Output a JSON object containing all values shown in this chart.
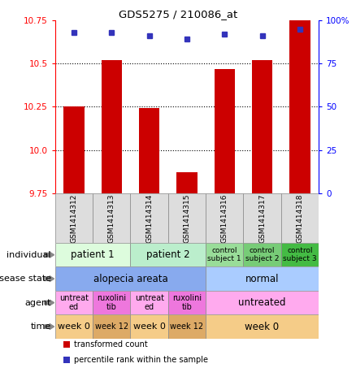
{
  "title": "GDS5275 / 210086_at",
  "samples": [
    "GSM1414312",
    "GSM1414313",
    "GSM1414314",
    "GSM1414315",
    "GSM1414316",
    "GSM1414317",
    "GSM1414318"
  ],
  "transformed_count": [
    10.25,
    10.52,
    10.24,
    9.87,
    10.47,
    10.52,
    10.75
  ],
  "percentile_rank": [
    93,
    93,
    91,
    89,
    92,
    91,
    95
  ],
  "ylim_left": [
    9.75,
    10.75
  ],
  "ylim_right": [
    0,
    100
  ],
  "yticks_left": [
    9.75,
    10.0,
    10.25,
    10.5,
    10.75
  ],
  "yticks_right": [
    0,
    25,
    50,
    75,
    100
  ],
  "ytick_labels_right": [
    "0",
    "25",
    "50",
    "75",
    "100%"
  ],
  "bar_color": "#cc0000",
  "dot_color": "#3333bb",
  "annotation_rows": [
    {
      "label": "individual",
      "groups": [
        {
          "text": "patient 1",
          "span": [
            0,
            2
          ],
          "color": "#ddfcdd",
          "fontsize": 8.5
        },
        {
          "text": "patient 2",
          "span": [
            2,
            4
          ],
          "color": "#bbeecc",
          "fontsize": 8.5
        },
        {
          "text": "control\nsubject 1",
          "span": [
            4,
            5
          ],
          "color": "#99dd99",
          "fontsize": 6.5
        },
        {
          "text": "control\nsubject 2",
          "span": [
            5,
            6
          ],
          "color": "#77cc77",
          "fontsize": 6.5
        },
        {
          "text": "control\nsubject 3",
          "span": [
            6,
            7
          ],
          "color": "#44bb44",
          "fontsize": 6.5
        }
      ]
    },
    {
      "label": "disease state",
      "groups": [
        {
          "text": "alopecia areata",
          "span": [
            0,
            4
          ],
          "color": "#88aaee",
          "fontsize": 8.5
        },
        {
          "text": "normal",
          "span": [
            4,
            7
          ],
          "color": "#aaccff",
          "fontsize": 8.5
        }
      ]
    },
    {
      "label": "agent",
      "groups": [
        {
          "text": "untreat\ned",
          "span": [
            0,
            1
          ],
          "color": "#ffaaee",
          "fontsize": 7
        },
        {
          "text": "ruxolini\ntib",
          "span": [
            1,
            2
          ],
          "color": "#ee77dd",
          "fontsize": 7
        },
        {
          "text": "untreat\ned",
          "span": [
            2,
            3
          ],
          "color": "#ffaaee",
          "fontsize": 7
        },
        {
          "text": "ruxolini\ntib",
          "span": [
            3,
            4
          ],
          "color": "#ee77dd",
          "fontsize": 7
        },
        {
          "text": "untreated",
          "span": [
            4,
            7
          ],
          "color": "#ffaaee",
          "fontsize": 8.5
        }
      ]
    },
    {
      "label": "time",
      "groups": [
        {
          "text": "week 0",
          "span": [
            0,
            1
          ],
          "color": "#f5cc88",
          "fontsize": 8
        },
        {
          "text": "week 12",
          "span": [
            1,
            2
          ],
          "color": "#ddaa66",
          "fontsize": 7
        },
        {
          "text": "week 0",
          "span": [
            2,
            3
          ],
          "color": "#f5cc88",
          "fontsize": 8
        },
        {
          "text": "week 12",
          "span": [
            3,
            4
          ],
          "color": "#ddaa66",
          "fontsize": 7
        },
        {
          "text": "week 0",
          "span": [
            4,
            7
          ],
          "color": "#f5cc88",
          "fontsize": 8.5
        }
      ]
    }
  ],
  "legend_items": [
    {
      "label": "transformed count",
      "color": "#cc0000"
    },
    {
      "label": "percentile rank within the sample",
      "color": "#3333bb"
    }
  ]
}
